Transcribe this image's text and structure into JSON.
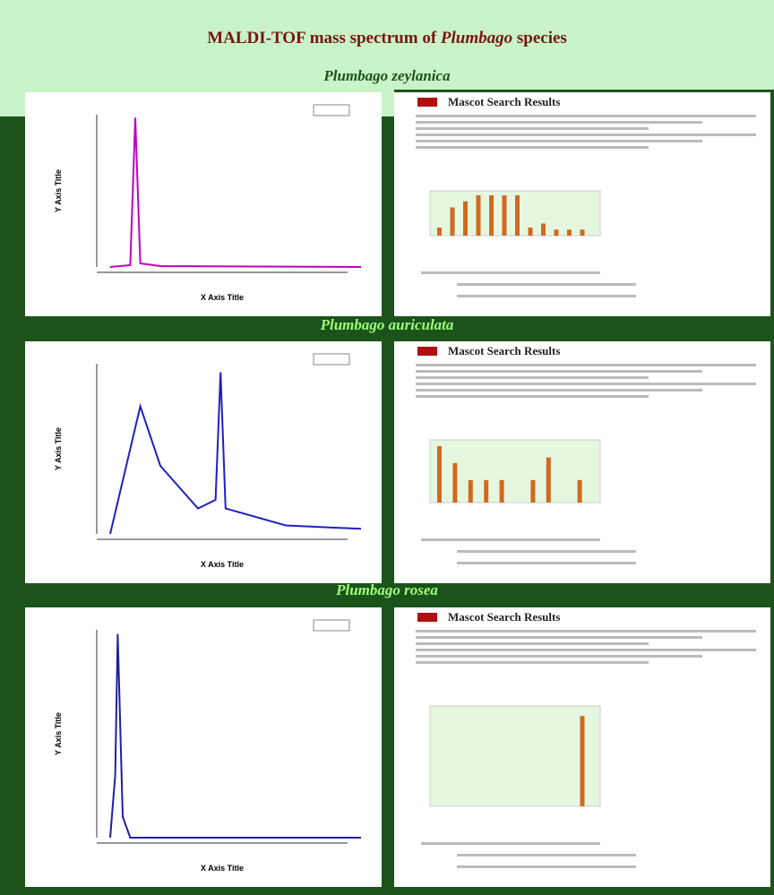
{
  "header": {
    "title_prefix": "MALDI-TOF mass spectrum of ",
    "title_italic": "Plumbago",
    "title_suffix": " species"
  },
  "sections": [
    {
      "species": "Plumbago zeylanica",
      "spectrum": {
        "x_label": "X Axis Title",
        "y_label": "Y Axis Title"
      },
      "mascot": {
        "title": "Mascot Search Results"
      }
    },
    {
      "species": "Plumbago auriculata",
      "spectrum": {
        "x_label": "X Axis Title",
        "y_label": "Y Axis Title"
      },
      "mascot": {
        "title": "Mascot Search Results"
      }
    },
    {
      "species": "Plumbago rosea",
      "spectrum": {
        "x_label": "X Axis Title",
        "y_label": "Y Axis Title"
      },
      "mascot": {
        "title": "Mascot Search Results"
      }
    }
  ]
}
